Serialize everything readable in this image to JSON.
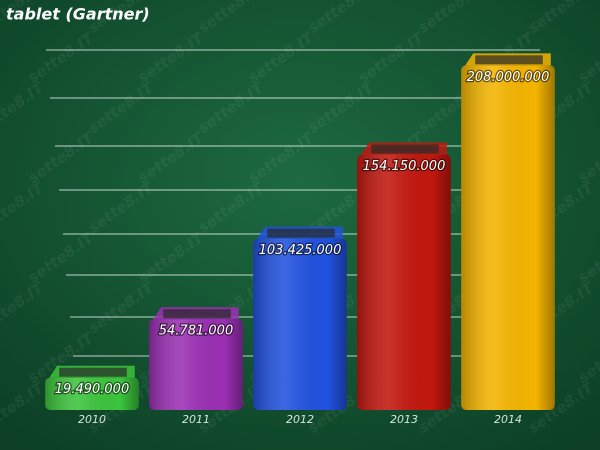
{
  "title": "tablet (Gartner)",
  "watermark": "sette8.IT",
  "chart_data": {
    "type": "bar",
    "title": "tablet (Gartner)",
    "categories": [
      "2010",
      "2011",
      "2012",
      "2013",
      "2014"
    ],
    "values": [
      19490000,
      54781000,
      103425000,
      154150000,
      208000000
    ],
    "value_labels": [
      "19.490.000",
      "54.781.000",
      "103.425.000",
      "154.150.000",
      "208.000.000"
    ],
    "colors": [
      "#3cc43c",
      "#9b2fb4",
      "#2152e0",
      "#c2170e",
      "#f4b400"
    ],
    "ylim": [
      0,
      210000000
    ]
  }
}
